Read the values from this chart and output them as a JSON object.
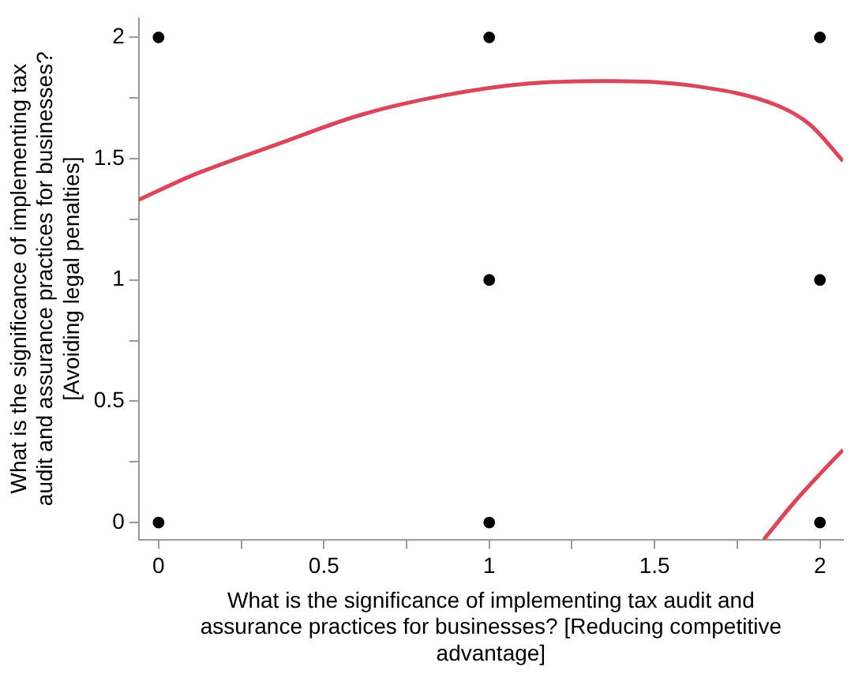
{
  "chart_data": {
    "type": "scatter",
    "xlabel": "What is the significance of implementing tax audit and assurance practices for businesses? [Reducing competitive advantage]",
    "ylabel": "What is the significance of implementing tax audit and assurance practices for businesses? [Avoiding legal penalties]",
    "xlim": [
      -0.06,
      2.07
    ],
    "ylim": [
      -0.07,
      2.08
    ],
    "xticks": [
      0,
      {
        "value": 0.25,
        "label": null
      },
      0.5,
      {
        "value": 0.75,
        "label": null
      },
      1,
      {
        "value": 1.25,
        "label": null
      },
      1.5,
      {
        "value": 1.75,
        "label": null
      },
      2
    ],
    "yticks": [
      0,
      {
        "value": 0.25,
        "label": null
      },
      0.5,
      {
        "value": 0.75,
        "label": null
      },
      1,
      {
        "value": 1.25,
        "label": null
      },
      1.5,
      {
        "value": 1.75,
        "label": null
      },
      2
    ],
    "grid": false,
    "legend": false,
    "series": [
      {
        "marker": "circle",
        "color": "#000000",
        "x": [
          0,
          1,
          2,
          1,
          2,
          0,
          1,
          2
        ],
        "values": [
          2,
          2,
          2,
          1,
          1,
          0,
          0,
          0
        ]
      },
      {
        "type": "line",
        "marker": "none",
        "color": "#d9475a",
        "line_style": "solid",
        "x": [
          -0.06,
          0.1,
          0.36,
          0.61,
          0.86,
          1.12,
          1.37,
          1.62,
          1.87,
          1.97,
          2.07
        ],
        "values": [
          1.33,
          1.43,
          1.56,
          1.68,
          1.76,
          1.81,
          1.82,
          1.8,
          1.72,
          1.64,
          1.49
        ]
      },
      {
        "type": "line",
        "marker": "none",
        "color": "#d9475a",
        "line_style": "solid",
        "x": [
          1.83,
          1.92,
          2.0,
          2.07
        ],
        "values": [
          -0.07,
          0.08,
          0.2,
          0.3
        ]
      }
    ]
  }
}
